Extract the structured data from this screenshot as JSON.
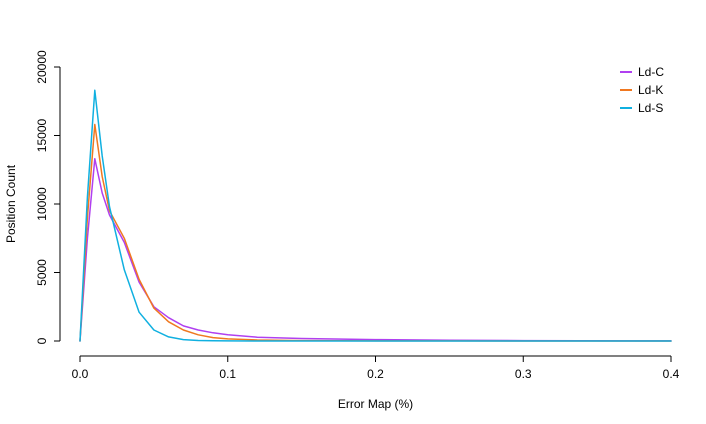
{
  "chart_data": {
    "type": "line",
    "xlabel": "Error Map (%)",
    "ylabel": "Position Count",
    "xlim": [
      0.0,
      0.4
    ],
    "ylim": [
      0,
      20000
    ],
    "x_ticks": [
      0.0,
      0.1,
      0.2,
      0.3,
      0.4
    ],
    "x_tick_labels": [
      "0.0",
      "0.1",
      "0.2",
      "0.3",
      "0.4"
    ],
    "y_ticks": [
      0,
      5000,
      10000,
      15000,
      20000
    ],
    "y_tick_labels": [
      "0",
      "5000",
      "10000",
      "15000",
      "20000"
    ],
    "grid": false,
    "legend_position": "top-right",
    "series": [
      {
        "name": "Ld-C",
        "color": "#b040f0",
        "x": [
          0.0,
          0.005,
          0.01,
          0.015,
          0.02,
          0.03,
          0.04,
          0.05,
          0.06,
          0.07,
          0.08,
          0.09,
          0.1,
          0.12,
          0.15,
          0.2,
          0.25,
          0.3,
          0.4
        ],
        "y": [
          0,
          7500,
          13300,
          10800,
          9200,
          7200,
          4300,
          2500,
          1700,
          1100,
          800,
          600,
          450,
          280,
          180,
          100,
          60,
          30,
          10
        ]
      },
      {
        "name": "Ld-K",
        "color": "#f07820",
        "x": [
          0.0,
          0.005,
          0.01,
          0.015,
          0.02,
          0.03,
          0.04,
          0.05,
          0.06,
          0.07,
          0.08,
          0.09,
          0.1,
          0.12,
          0.15,
          0.2,
          0.25,
          0.3,
          0.4
        ],
        "y": [
          0,
          9000,
          15800,
          12000,
          9500,
          7500,
          4500,
          2400,
          1400,
          800,
          450,
          250,
          150,
          70,
          30,
          10,
          5,
          0,
          0
        ]
      },
      {
        "name": "Ld-S",
        "color": "#10b0e0",
        "x": [
          0.0,
          0.005,
          0.01,
          0.015,
          0.02,
          0.03,
          0.04,
          0.05,
          0.06,
          0.07,
          0.08,
          0.09,
          0.1,
          0.12,
          0.15,
          0.2,
          0.25,
          0.3,
          0.4
        ],
        "y": [
          0,
          10500,
          18300,
          13500,
          9800,
          5200,
          2100,
          800,
          300,
          100,
          40,
          15,
          5,
          0,
          0,
          0,
          0,
          0,
          0
        ]
      }
    ]
  }
}
